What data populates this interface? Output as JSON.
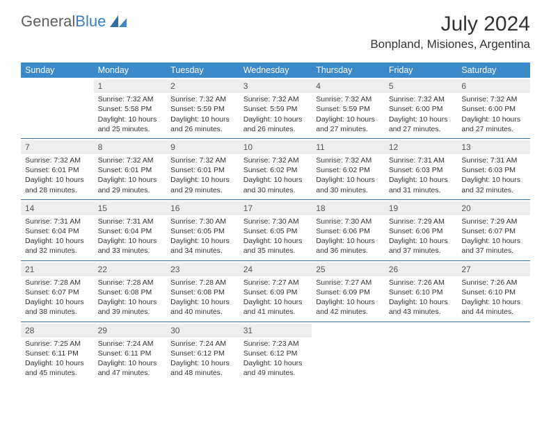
{
  "brand": {
    "part1": "General",
    "part2": "Blue"
  },
  "title": "July 2024",
  "location": "Bonpland, Misiones, Argentina",
  "colors": {
    "header_bg": "#3b89c9",
    "header_text": "#ffffff",
    "rule": "#2e6fa8",
    "daynum_bg": "#eeeeee",
    "text": "#333333",
    "logo_blue": "#3b7bbf"
  },
  "day_headers": [
    "Sunday",
    "Monday",
    "Tuesday",
    "Wednesday",
    "Thursday",
    "Friday",
    "Saturday"
  ],
  "weeks": [
    [
      null,
      {
        "n": "1",
        "sr": "Sunrise: 7:32 AM",
        "ss": "Sunset: 5:58 PM",
        "d1": "Daylight: 10 hours",
        "d2": "and 25 minutes."
      },
      {
        "n": "2",
        "sr": "Sunrise: 7:32 AM",
        "ss": "Sunset: 5:59 PM",
        "d1": "Daylight: 10 hours",
        "d2": "and 26 minutes."
      },
      {
        "n": "3",
        "sr": "Sunrise: 7:32 AM",
        "ss": "Sunset: 5:59 PM",
        "d1": "Daylight: 10 hours",
        "d2": "and 26 minutes."
      },
      {
        "n": "4",
        "sr": "Sunrise: 7:32 AM",
        "ss": "Sunset: 5:59 PM",
        "d1": "Daylight: 10 hours",
        "d2": "and 27 minutes."
      },
      {
        "n": "5",
        "sr": "Sunrise: 7:32 AM",
        "ss": "Sunset: 6:00 PM",
        "d1": "Daylight: 10 hours",
        "d2": "and 27 minutes."
      },
      {
        "n": "6",
        "sr": "Sunrise: 7:32 AM",
        "ss": "Sunset: 6:00 PM",
        "d1": "Daylight: 10 hours",
        "d2": "and 27 minutes."
      }
    ],
    [
      {
        "n": "7",
        "sr": "Sunrise: 7:32 AM",
        "ss": "Sunset: 6:01 PM",
        "d1": "Daylight: 10 hours",
        "d2": "and 28 minutes."
      },
      {
        "n": "8",
        "sr": "Sunrise: 7:32 AM",
        "ss": "Sunset: 6:01 PM",
        "d1": "Daylight: 10 hours",
        "d2": "and 29 minutes."
      },
      {
        "n": "9",
        "sr": "Sunrise: 7:32 AM",
        "ss": "Sunset: 6:01 PM",
        "d1": "Daylight: 10 hours",
        "d2": "and 29 minutes."
      },
      {
        "n": "10",
        "sr": "Sunrise: 7:32 AM",
        "ss": "Sunset: 6:02 PM",
        "d1": "Daylight: 10 hours",
        "d2": "and 30 minutes."
      },
      {
        "n": "11",
        "sr": "Sunrise: 7:32 AM",
        "ss": "Sunset: 6:02 PM",
        "d1": "Daylight: 10 hours",
        "d2": "and 30 minutes."
      },
      {
        "n": "12",
        "sr": "Sunrise: 7:31 AM",
        "ss": "Sunset: 6:03 PM",
        "d1": "Daylight: 10 hours",
        "d2": "and 31 minutes."
      },
      {
        "n": "13",
        "sr": "Sunrise: 7:31 AM",
        "ss": "Sunset: 6:03 PM",
        "d1": "Daylight: 10 hours",
        "d2": "and 32 minutes."
      }
    ],
    [
      {
        "n": "14",
        "sr": "Sunrise: 7:31 AM",
        "ss": "Sunset: 6:04 PM",
        "d1": "Daylight: 10 hours",
        "d2": "and 32 minutes."
      },
      {
        "n": "15",
        "sr": "Sunrise: 7:31 AM",
        "ss": "Sunset: 6:04 PM",
        "d1": "Daylight: 10 hours",
        "d2": "and 33 minutes."
      },
      {
        "n": "16",
        "sr": "Sunrise: 7:30 AM",
        "ss": "Sunset: 6:05 PM",
        "d1": "Daylight: 10 hours",
        "d2": "and 34 minutes."
      },
      {
        "n": "17",
        "sr": "Sunrise: 7:30 AM",
        "ss": "Sunset: 6:05 PM",
        "d1": "Daylight: 10 hours",
        "d2": "and 35 minutes."
      },
      {
        "n": "18",
        "sr": "Sunrise: 7:30 AM",
        "ss": "Sunset: 6:06 PM",
        "d1": "Daylight: 10 hours",
        "d2": "and 36 minutes."
      },
      {
        "n": "19",
        "sr": "Sunrise: 7:29 AM",
        "ss": "Sunset: 6:06 PM",
        "d1": "Daylight: 10 hours",
        "d2": "and 37 minutes."
      },
      {
        "n": "20",
        "sr": "Sunrise: 7:29 AM",
        "ss": "Sunset: 6:07 PM",
        "d1": "Daylight: 10 hours",
        "d2": "and 37 minutes."
      }
    ],
    [
      {
        "n": "21",
        "sr": "Sunrise: 7:28 AM",
        "ss": "Sunset: 6:07 PM",
        "d1": "Daylight: 10 hours",
        "d2": "and 38 minutes."
      },
      {
        "n": "22",
        "sr": "Sunrise: 7:28 AM",
        "ss": "Sunset: 6:08 PM",
        "d1": "Daylight: 10 hours",
        "d2": "and 39 minutes."
      },
      {
        "n": "23",
        "sr": "Sunrise: 7:28 AM",
        "ss": "Sunset: 6:08 PM",
        "d1": "Daylight: 10 hours",
        "d2": "and 40 minutes."
      },
      {
        "n": "24",
        "sr": "Sunrise: 7:27 AM",
        "ss": "Sunset: 6:09 PM",
        "d1": "Daylight: 10 hours",
        "d2": "and 41 minutes."
      },
      {
        "n": "25",
        "sr": "Sunrise: 7:27 AM",
        "ss": "Sunset: 6:09 PM",
        "d1": "Daylight: 10 hours",
        "d2": "and 42 minutes."
      },
      {
        "n": "26",
        "sr": "Sunrise: 7:26 AM",
        "ss": "Sunset: 6:10 PM",
        "d1": "Daylight: 10 hours",
        "d2": "and 43 minutes."
      },
      {
        "n": "27",
        "sr": "Sunrise: 7:26 AM",
        "ss": "Sunset: 6:10 PM",
        "d1": "Daylight: 10 hours",
        "d2": "and 44 minutes."
      }
    ],
    [
      {
        "n": "28",
        "sr": "Sunrise: 7:25 AM",
        "ss": "Sunset: 6:11 PM",
        "d1": "Daylight: 10 hours",
        "d2": "and 45 minutes."
      },
      {
        "n": "29",
        "sr": "Sunrise: 7:24 AM",
        "ss": "Sunset: 6:11 PM",
        "d1": "Daylight: 10 hours",
        "d2": "and 47 minutes."
      },
      {
        "n": "30",
        "sr": "Sunrise: 7:24 AM",
        "ss": "Sunset: 6:12 PM",
        "d1": "Daylight: 10 hours",
        "d2": "and 48 minutes."
      },
      {
        "n": "31",
        "sr": "Sunrise: 7:23 AM",
        "ss": "Sunset: 6:12 PM",
        "d1": "Daylight: 10 hours",
        "d2": "and 49 minutes."
      },
      null,
      null,
      null
    ]
  ]
}
